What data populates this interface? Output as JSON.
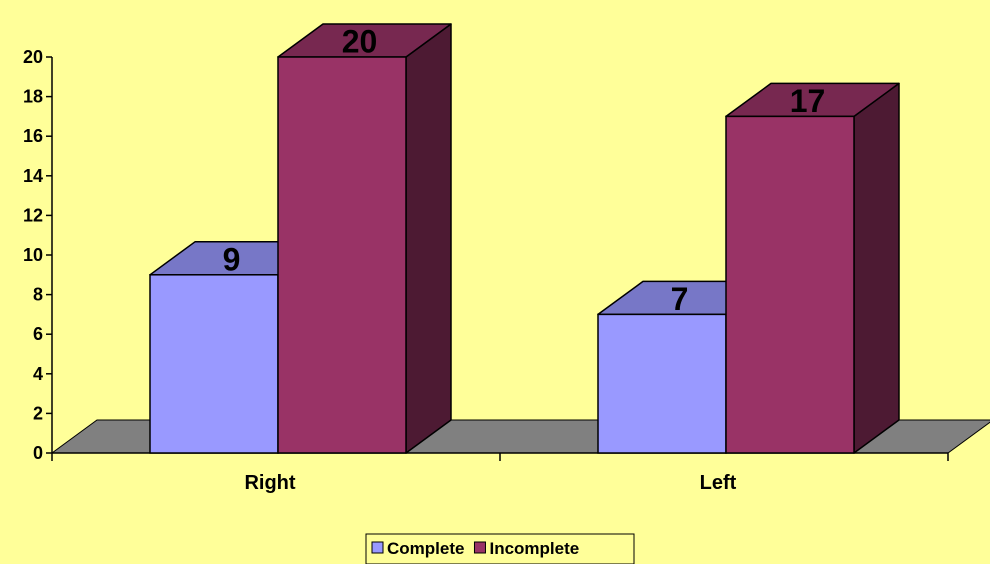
{
  "chart_data": {
    "type": "bar",
    "categories": [
      "Right",
      "Left"
    ],
    "series": [
      {
        "name": "Complete",
        "values": [
          9,
          7
        ],
        "color": "#9999FF"
      },
      {
        "name": "Incomplete",
        "values": [
          20,
          17
        ],
        "color": "#993366"
      }
    ],
    "ylim": [
      0,
      20
    ],
    "yticks": [
      0,
      2,
      4,
      6,
      8,
      10,
      12,
      14,
      16,
      18,
      20
    ],
    "style": "3d-column",
    "grid": false,
    "legend_position": "bottom",
    "data_labels": true
  },
  "colors": {
    "background": "#FFFF99",
    "floor": "#808080",
    "legend_border": "#000000"
  }
}
